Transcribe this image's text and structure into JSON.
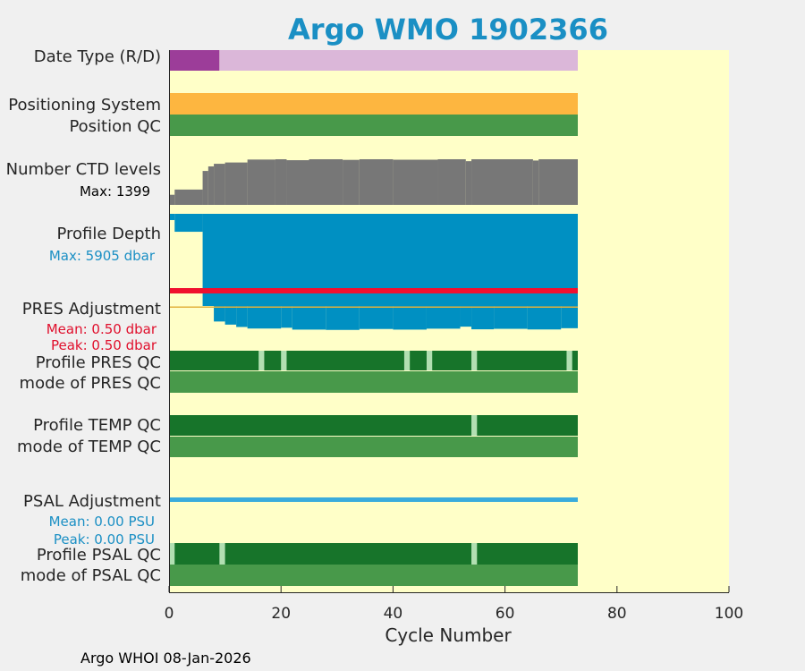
{
  "chart_data": {
    "type": "bar",
    "title": "Argo WMO 1902366",
    "xlabel": "Cycle Number",
    "xlim": [
      0,
      100
    ],
    "xticks": [
      0,
      20,
      40,
      60,
      80,
      100
    ],
    "rows": {
      "date_type": "Date Type (R/D)",
      "positioning_system": "Positioning System",
      "position_qc": "Position QC",
      "ctd_levels": "Number CTD levels",
      "ctd_max": "Max: 1399",
      "profile_depth": "Profile Depth",
      "depth_max": "Max: 5905 dbar",
      "pres_adjustment": "PRES Adjustment",
      "pres_mean": "Mean: 0.50 dbar",
      "pres_peak": "Peak: 0.50 dbar",
      "profile_pres_qc": "Profile PRES QC",
      "mode_pres_qc": "mode of PRES QC",
      "profile_temp_qc": "Profile TEMP QC",
      "mode_temp_qc": "mode of TEMP QC",
      "psal_adjustment": "PSAL Adjustment",
      "psal_mean": "Mean: 0.00 PSU",
      "psal_peak": "Peak: 0.00 PSU",
      "profile_psal_qc": "Profile PSAL QC",
      "mode_psal_qc": "mode of PSAL QC"
    },
    "last_cycle": 73,
    "date_type_realtime_until": 9,
    "ctd_levels_segments": [
      [
        0,
        1,
        310
      ],
      [
        1,
        6,
        470
      ],
      [
        6,
        7,
        1040
      ],
      [
        7,
        8,
        1180
      ],
      [
        8,
        10,
        1260
      ],
      [
        10,
        14,
        1300
      ],
      [
        14,
        19,
        1390
      ],
      [
        19,
        21,
        1399
      ],
      [
        21,
        25,
        1370
      ],
      [
        25,
        31,
        1399
      ],
      [
        31,
        34,
        1380
      ],
      [
        34,
        40,
        1399
      ],
      [
        40,
        48,
        1385
      ],
      [
        48,
        53,
        1399
      ],
      [
        53,
        54,
        1340
      ],
      [
        54,
        65,
        1399
      ],
      [
        65,
        66,
        1360
      ],
      [
        66,
        73,
        1399
      ]
    ],
    "ctd_levels_max": 1399,
    "profile_depth_segments": [
      [
        0,
        1,
        400
      ],
      [
        1,
        6,
        1150
      ],
      [
        6,
        73,
        5905
      ]
    ],
    "profile_depth_max": 5905,
    "pres_adjustment_dbar": 0.5,
    "pres_adjust_extension_end": [
      [
        8,
        10,
        6900
      ],
      [
        10,
        12,
        7100
      ],
      [
        12,
        14,
        7250
      ],
      [
        14,
        20,
        7350
      ],
      [
        20,
        22,
        7300
      ],
      [
        22,
        28,
        7420
      ],
      [
        28,
        34,
        7440
      ],
      [
        34,
        40,
        7380
      ],
      [
        40,
        46,
        7420
      ],
      [
        46,
        52,
        7360
      ],
      [
        52,
        54,
        7230
      ],
      [
        54,
        58,
        7400
      ],
      [
        58,
        64,
        7370
      ],
      [
        64,
        70,
        7410
      ],
      [
        70,
        73,
        7330
      ]
    ],
    "profile_pres_qc_mark_cycles": [
      16,
      20,
      42,
      46,
      54,
      71
    ],
    "profile_temp_qc_mark_cycles": [
      54
    ],
    "profile_psal_qc_mark_cycles": [
      0,
      9,
      54
    ],
    "psal_adjustment_psu": 0.0,
    "colors": {
      "title": "#1a8fc4",
      "background": "#ffffc8",
      "realtime": "#9c3d99",
      "delayed": "#dbb7d9",
      "positioning": "#fdb640",
      "qc_good": "#48994a",
      "qc_profile": "#17742a",
      "qc_mark": "#b2dfb2",
      "ctd": "#777777",
      "depth": "#0090c2",
      "pres_adjust": "#f0102f",
      "psal_adjust": "#3aacdc",
      "pres_stats": "#e0102d",
      "psal_stats": "#1a8fc4"
    }
  },
  "footer": "Argo WHOI 08-Jan-2026"
}
